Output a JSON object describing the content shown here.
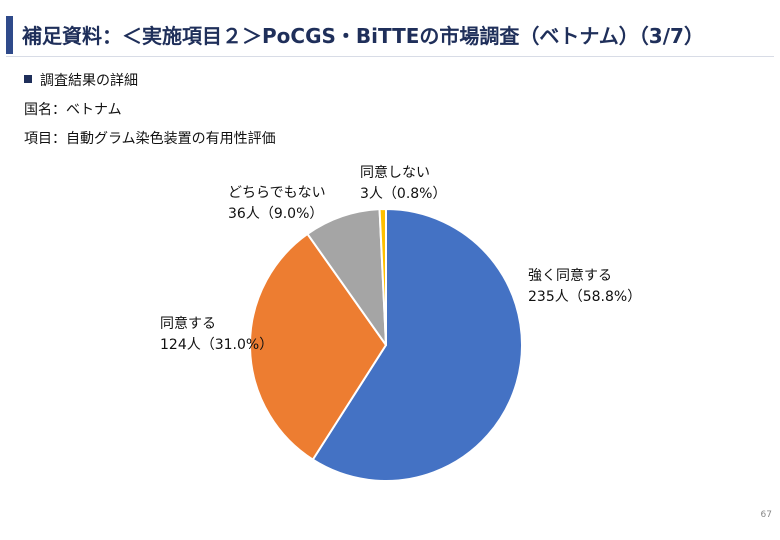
{
  "header": {
    "title": "補足資料：＜実施項目２＞PoCGS・BiTTEの市場調査（ベトナム）（3/7）"
  },
  "info": {
    "section": "調査結果の詳細",
    "country_line": "国名：ベトナム",
    "item_line": "項目：自動グラム染色装置の有用性評価"
  },
  "page_number": "67",
  "chart_data": {
    "type": "pie",
    "title": "",
    "start_angle_deg": 0,
    "direction": "clockwise",
    "slices": [
      {
        "label": "強く同意する",
        "count": 235,
        "value_label": "235人（58.8%）",
        "percent": 58.8,
        "color": "#4472c4"
      },
      {
        "label": "同意する",
        "count": 124,
        "value_label": "124人（31.0%）",
        "percent": 31.0,
        "color": "#ed7d31"
      },
      {
        "label": "どちらでもない",
        "count": 36,
        "value_label": "36人（9.0%）",
        "percent": 9.0,
        "color": "#a5a5a5"
      },
      {
        "label": "同意しない",
        "count": 3,
        "value_label": "3人（0.8%）",
        "percent": 0.8,
        "color": "#ffc000"
      }
    ]
  }
}
